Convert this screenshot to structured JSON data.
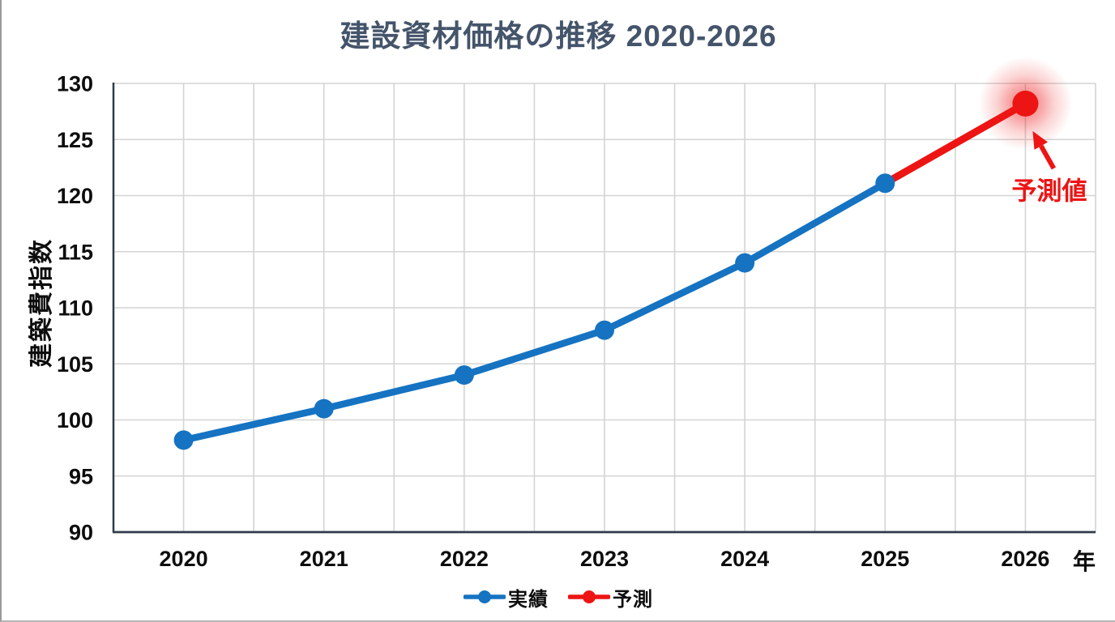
{
  "chart_data": {
    "type": "line",
    "title": "建設資材価格の推移 2020-2026",
    "xlabel": "年",
    "ylabel": "建築費指数",
    "categories": [
      2020,
      2021,
      2022,
      2023,
      2024,
      2025,
      2026
    ],
    "series": [
      {
        "name": "実績",
        "color": "#1573c2",
        "x": [
          2020,
          2021,
          2022,
          2023,
          2024,
          2025
        ],
        "values": [
          98.2,
          101,
          104,
          108,
          114,
          121.1
        ],
        "marker_radius": 12,
        "stroke_width": 8.5,
        "markers": "all"
      },
      {
        "name": "予測",
        "color": "#ed1414",
        "x": [
          2025,
          2026
        ],
        "values": [
          121.1,
          128.2
        ],
        "marker_radius": 16,
        "stroke_width": 9,
        "markers": "last",
        "glow": true
      }
    ],
    "ylim": [
      90,
      130
    ],
    "y_ticks": [
      90,
      95,
      100,
      105,
      110,
      115,
      120,
      125,
      130
    ],
    "xlim": [
      2019.5,
      2026.5
    ],
    "x_grid_step": 0.5,
    "grid": true,
    "legend_position": "bottom",
    "annotation": {
      "label": "予測値",
      "target_x": 2026,
      "target_y": 128.2,
      "color": "#ed1414"
    }
  },
  "colors": {
    "background": "#ffffff",
    "title": "#44546a",
    "axis_line": "#2f3b4c",
    "gridline": "#d4d4d4",
    "tick_text": "#0d0d0d",
    "actual": "#1573c2",
    "forecast": "#ed1414"
  }
}
